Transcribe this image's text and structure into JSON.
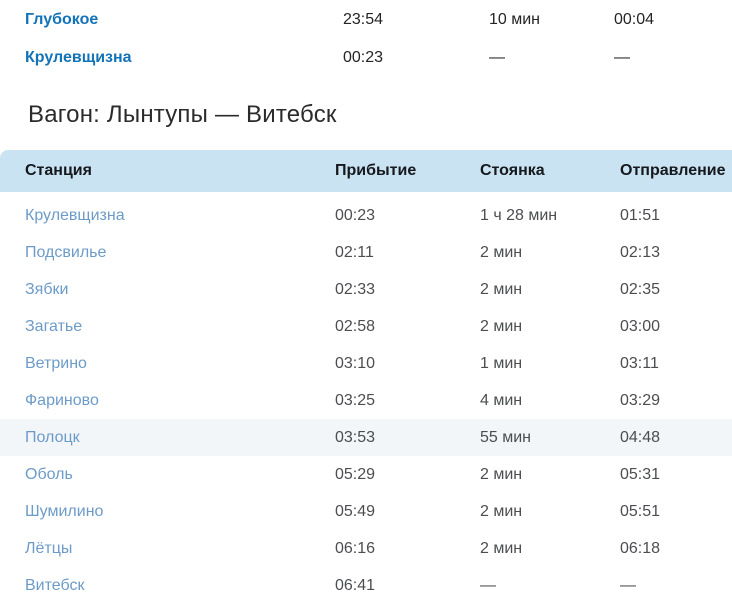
{
  "colors": {
    "header_bg": "#cae3f2",
    "header_text": "#15181c",
    "link_strong": "#1373b8",
    "link_soft": "#6d9bc8",
    "cell_text": "#4b4d50",
    "top_text": "#242424",
    "heading_text": "#2b2b2b",
    "highlight_bg": "#f2f6f9"
  },
  "top_table": {
    "rows": [
      {
        "station": "Глубокое",
        "arrival": "23:54",
        "stop": "10 мин",
        "departure": "00:04"
      },
      {
        "station": "Крулевщизна",
        "arrival": "00:23",
        "stop": "—",
        "departure": "—"
      }
    ]
  },
  "heading": "Вагон: Лынтупы — Витебск",
  "table": {
    "headers": {
      "station": "Станция",
      "arrival": "Прибытие",
      "stop": "Стоянка",
      "departure": "Отправление"
    },
    "rows": [
      {
        "station": "Крулевщизна",
        "arrival": "00:23",
        "stop": "1 ч 28 мин",
        "departure": "01:51"
      },
      {
        "station": "Подсвилье",
        "arrival": "02:11",
        "stop": "2 мин",
        "departure": "02:13"
      },
      {
        "station": "Зябки",
        "arrival": "02:33",
        "stop": "2 мин",
        "departure": "02:35"
      },
      {
        "station": "Загатье",
        "arrival": "02:58",
        "stop": "2 мин",
        "departure": "03:00"
      },
      {
        "station": "Ветрино",
        "arrival": "03:10",
        "stop": "1 мин",
        "departure": "03:11"
      },
      {
        "station": "Фариново",
        "arrival": "03:25",
        "stop": "4 мин",
        "departure": "03:29"
      },
      {
        "station": "Полоцк",
        "arrival": "03:53",
        "stop": "55 мин",
        "departure": "04:48",
        "highlighted": true
      },
      {
        "station": "Оболь",
        "arrival": "05:29",
        "stop": "2 мин",
        "departure": "05:31"
      },
      {
        "station": "Шумилино",
        "arrival": "05:49",
        "stop": "2 мин",
        "departure": "05:51"
      },
      {
        "station": "Лётцы",
        "arrival": "06:16",
        "stop": "2 мин",
        "departure": "06:18"
      },
      {
        "station": "Витебск",
        "arrival": "06:41",
        "stop": "—",
        "departure": "—"
      }
    ]
  }
}
